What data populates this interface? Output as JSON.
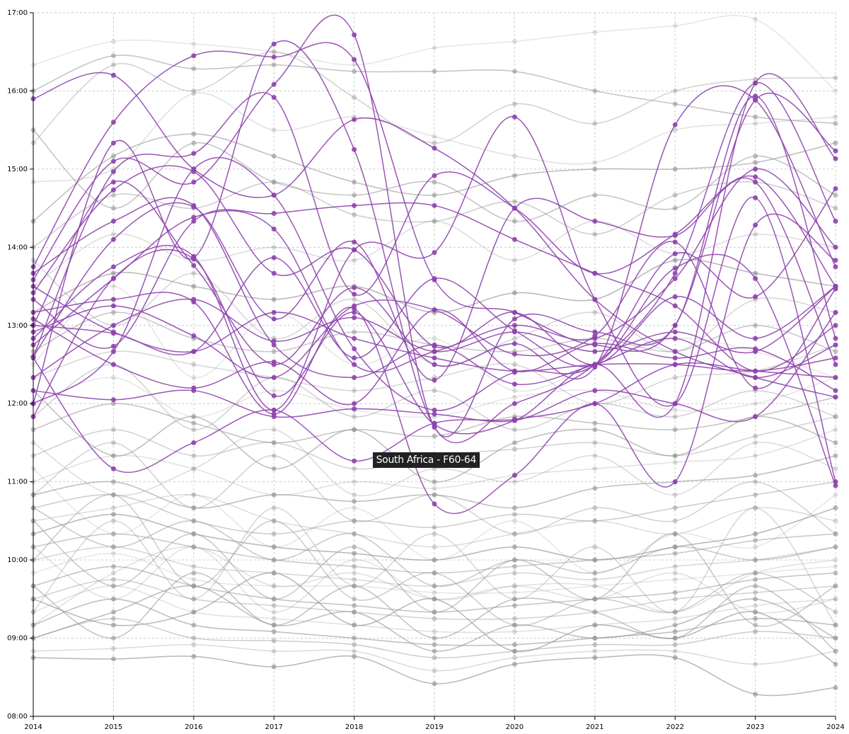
{
  "chart_data": {
    "type": "line",
    "x": [
      2014,
      2015,
      2016,
      2017,
      2018,
      2019,
      2020,
      2021,
      2022,
      2023,
      2024
    ],
    "xlim": [
      2014,
      2024
    ],
    "ylim": [
      "08:00",
      "17:00"
    ],
    "y_ticks": [
      "08:00",
      "09:00",
      "10:00",
      "11:00",
      "12:00",
      "13:00",
      "14:00",
      "15:00",
      "16:00",
      "17:00"
    ],
    "x_ticks": [
      "2014",
      "2015",
      "2016",
      "2017",
      "2018",
      "2019",
      "2020",
      "2021",
      "2022",
      "2023",
      "2024"
    ],
    "grid": true,
    "highlight_color": "#8e44ad",
    "background_color": "#cccccc",
    "tooltip": "South Africa - F60-64",
    "tooltip_point": {
      "x": 2018,
      "y": "11:16"
    },
    "highlighted_series": [
      [
        "15:54",
        "16:12",
        "15:00",
        "14:40",
        "15:38",
        "15:16",
        "14:30",
        "13:20",
        "12:40",
        "12:20",
        "12:05"
      ],
      [
        "13:45",
        "15:36",
        "16:27",
        "16:26",
        "16:24",
        "13:35",
        "13:10",
        "12:45",
        "13:00",
        "15:53",
        "15:14"
      ],
      [
        "12:00",
        "15:20",
        "13:52",
        "16:36",
        "15:15",
        "11:42",
        "12:00",
        "12:30",
        "13:40",
        "16:06",
        "14:20"
      ],
      [
        "13:35",
        "15:06",
        "14:50",
        "16:05",
        "16:43",
        "11:42",
        "13:05",
        "12:55",
        "13:00",
        "15:56",
        "12:50"
      ],
      [
        "12:36",
        "14:58",
        "15:12",
        "15:55",
        "13:24",
        "14:55",
        "14:30",
        "13:40",
        "14:10",
        "14:54",
        "13:30"
      ],
      [
        "13:20",
        "12:44",
        "14:20",
        "14:26",
        "14:32",
        "14:32",
        "14:06",
        "13:40",
        "13:15",
        "12:25",
        "13:00"
      ],
      [
        "12:50",
        "13:45",
        "13:53",
        "11:55",
        "13:58",
        "13:56",
        "15:40",
        "13:20",
        "12:00",
        "14:38",
        "11:00"
      ],
      [
        "13:00",
        "12:54",
        "12:40",
        "13:52",
        "12:35",
        "13:36",
        "12:56",
        "12:30",
        "13:44",
        "13:36",
        "10:57"
      ],
      [
        "12:36",
        "14:06",
        "14:31",
        "13:05",
        "14:04",
        "12:18",
        "14:30",
        "14:20",
        "14:09",
        "14:50",
        "12:30"
      ],
      [
        "11:50",
        "13:36",
        "13:51",
        "12:06",
        "13:10",
        "11:44",
        "11:47",
        "12:30",
        "12:00",
        "16:06",
        "15:08"
      ],
      [
        "13:10",
        "13:20",
        "13:18",
        "11:52",
        "13:13",
        "10:43",
        "11:05",
        "12:00",
        "11:00",
        "14:17",
        "13:50"
      ],
      [
        "12:35",
        "11:10",
        "11:30",
        "11:55",
        "11:16",
        "11:45",
        "11:48",
        "12:00",
        "12:30",
        "12:25",
        "12:20"
      ],
      [
        "13:40",
        "14:20",
        "14:32",
        "12:45",
        "12:20",
        "12:45",
        "12:15",
        "12:30",
        "12:50",
        "12:20",
        "12:45"
      ],
      [
        "12:10",
        "12:03",
        "12:10",
        "11:50",
        "11:56",
        "11:52",
        "11:47",
        "12:10",
        "12:00",
        "11:50",
        "13:10"
      ],
      [
        "13:30",
        "12:55",
        "12:40",
        "13:10",
        "12:50",
        "12:35",
        "12:25",
        "12:30",
        "12:30",
        "12:25",
        "12:35"
      ],
      [
        "12:20",
        "13:00",
        "13:20",
        "12:48",
        "13:06",
        "12:40",
        "12:55",
        "12:40",
        "12:55",
        "12:40",
        "13:30"
      ],
      [
        "12:45",
        "13:36",
        "14:23",
        "14:14",
        "12:30",
        "12:40",
        "13:00",
        "12:50",
        "13:36",
        "15:00",
        "14:00"
      ],
      [
        "13:05",
        "12:30",
        "12:12",
        "12:32",
        "12:00",
        "13:12",
        "12:25",
        "12:46",
        "12:35",
        "12:42",
        "12:10"
      ],
      [
        "13:25",
        "14:44",
        "14:58",
        "13:40",
        "13:58",
        "12:44",
        "13:10",
        "12:30",
        "13:22",
        "12:50",
        "13:30"
      ],
      [
        "12:00",
        "12:40",
        "15:00",
        "14:40",
        "12:42",
        "11:55",
        "12:24",
        "12:30",
        "13:55",
        "13:22",
        "14:45"
      ],
      [
        "12:55",
        "13:15",
        "12:52",
        "12:20",
        "13:15",
        "13:12",
        "12:38",
        "12:52",
        "14:04",
        "12:12",
        "13:28"
      ],
      [
        "13:00",
        "14:50",
        "13:46",
        "12:30",
        "13:29",
        "12:30",
        "12:46",
        "12:28",
        "15:34",
        "15:53",
        "13:45"
      ]
    ],
    "background_series": [
      [
        "16:20",
        "16:38",
        "16:36",
        "16:30",
        "16:20",
        "16:33",
        "16:38",
        "16:45",
        "16:50",
        "16:55",
        "16:00"
      ],
      [
        "16:00",
        "16:27",
        "16:17",
        "16:20",
        "16:15",
        "16:15",
        "16:15",
        "16:00",
        "15:50",
        "15:40",
        "15:35"
      ],
      [
        "15:20",
        "16:20",
        "16:00",
        "16:30",
        "15:55",
        "15:20",
        "15:50",
        "15:35",
        "16:00",
        "16:09",
        "16:10"
      ],
      [
        "14:50",
        "15:00",
        "15:58",
        "15:30",
        "15:40",
        "15:25",
        "15:10",
        "15:05",
        "15:30",
        "15:35",
        "15:40"
      ],
      [
        "14:20",
        "15:10",
        "15:27",
        "15:10",
        "14:50",
        "14:40",
        "14:55",
        "15:00",
        "15:00",
        "15:05",
        "15:20"
      ],
      [
        "14:00",
        "14:40",
        "14:30",
        "14:50",
        "14:25",
        "14:20",
        "14:35",
        "14:10",
        "14:40",
        "14:50",
        "14:30"
      ],
      [
        "13:30",
        "14:10",
        "13:50",
        "14:00",
        "13:50",
        "14:20",
        "13:50",
        "14:20",
        "13:55",
        "14:10",
        "14:00"
      ],
      [
        "13:10",
        "13:40",
        "13:30",
        "13:20",
        "13:30",
        "13:10",
        "13:25",
        "13:20",
        "13:50",
        "13:40",
        "13:30"
      ],
      [
        "12:40",
        "13:10",
        "12:50",
        "12:40",
        "12:55",
        "12:45",
        "12:40",
        "12:50",
        "12:40",
        "13:00",
        "12:40"
      ],
      [
        "12:20",
        "12:40",
        "12:30",
        "12:20",
        "12:10",
        "12:20",
        "12:30",
        "12:00",
        "12:20",
        "12:25",
        "12:45"
      ],
      [
        "12:00",
        "12:20",
        "11:50",
        "12:10",
        "11:55",
        "11:50",
        "12:05",
        "12:10",
        "11:55",
        "12:00",
        "12:20"
      ],
      [
        "11:40",
        "12:00",
        "11:45",
        "11:30",
        "11:40",
        "11:35",
        "11:50",
        "11:45",
        "11:40",
        "11:50",
        "12:05"
      ],
      [
        "11:20",
        "11:40",
        "11:20",
        "11:30",
        "11:10",
        "11:20",
        "11:25",
        "11:30",
        "11:20",
        "11:35",
        "11:50"
      ],
      [
        "11:00",
        "11:20",
        "11:10",
        "10:50",
        "11:00",
        "10:55",
        "11:05",
        "11:10",
        "11:15",
        "11:20",
        "11:40"
      ],
      [
        "10:50",
        "11:00",
        "10:40",
        "10:50",
        "10:45",
        "10:50",
        "10:40",
        "10:55",
        "11:00",
        "11:05",
        "11:20"
      ],
      [
        "10:40",
        "10:50",
        "10:30",
        "10:20",
        "10:30",
        "10:25",
        "10:35",
        "10:30",
        "10:40",
        "10:50",
        "11:00"
      ],
      [
        "10:30",
        "10:40",
        "10:50",
        "10:30",
        "10:20",
        "10:10",
        "10:20",
        "10:30",
        "10:20",
        "10:40",
        "10:30"
      ],
      [
        "10:20",
        "10:35",
        "10:20",
        "10:10",
        "10:05",
        "10:00",
        "10:10",
        "10:00",
        "10:10",
        "10:20",
        "10:40"
      ],
      [
        "10:10",
        "10:20",
        "10:10",
        "10:00",
        "09:55",
        "09:50",
        "09:55",
        "10:00",
        "10:05",
        "10:15",
        "10:20"
      ],
      [
        "10:00",
        "10:10",
        "09:55",
        "09:50",
        "09:45",
        "09:40",
        "09:50",
        "09:45",
        "09:55",
        "10:00",
        "10:10"
      ],
      [
        "09:50",
        "10:05",
        "09:45",
        "09:40",
        "09:40",
        "09:35",
        "09:35",
        "09:40",
        "09:45",
        "09:50",
        "09:55"
      ],
      [
        "09:40",
        "09:55",
        "09:40",
        "09:30",
        "09:25",
        "09:20",
        "09:25",
        "09:30",
        "09:35",
        "09:45",
        "09:50"
      ],
      [
        "09:30",
        "09:45",
        "09:30",
        "09:25",
        "09:20",
        "09:15",
        "09:15",
        "09:20",
        "09:30",
        "09:35",
        "09:40"
      ],
      [
        "09:20",
        "09:40",
        "09:20",
        "09:15",
        "09:10",
        "09:05",
        "09:05",
        "09:10",
        "09:15",
        "09:25",
        "09:30"
      ],
      [
        "09:10",
        "09:30",
        "09:10",
        "09:05",
        "09:00",
        "08:55",
        "08:55",
        "09:00",
        "09:05",
        "09:15",
        "09:10"
      ],
      [
        "09:00",
        "09:15",
        "09:00",
        "08:58",
        "08:55",
        "08:45",
        "08:50",
        "08:55",
        "08:55",
        "09:05",
        "09:00"
      ],
      [
        "08:50",
        "08:52",
        "08:55",
        "08:50",
        "08:50",
        "08:35",
        "08:45",
        "08:50",
        "08:50",
        "08:40",
        "08:50"
      ],
      [
        "08:45",
        "08:44",
        "08:46",
        "08:38",
        "08:46",
        "08:25",
        "08:40",
        "08:45",
        "08:45",
        "08:17",
        "08:22"
      ],
      [
        "10:30",
        "09:40",
        "10:20",
        "09:30",
        "10:10",
        "09:20",
        "10:00",
        "09:30",
        "10:20",
        "09:10",
        "09:40"
      ],
      [
        "09:20",
        "10:30",
        "09:30",
        "10:40",
        "09:40",
        "10:20",
        "09:30",
        "10:10",
        "09:20",
        "10:40",
        "09:10"
      ],
      [
        "11:10",
        "10:20",
        "10:50",
        "10:10",
        "10:40",
        "10:00",
        "10:30",
        "09:50",
        "10:20",
        "10:10",
        "10:50"
      ],
      [
        "09:40",
        "09:00",
        "09:50",
        "09:10",
        "09:40",
        "09:00",
        "09:30",
        "09:20",
        "09:00",
        "09:40",
        "08:50"
      ],
      [
        "10:50",
        "11:30",
        "10:40",
        "11:20",
        "10:30",
        "10:50",
        "10:20",
        "10:40",
        "10:30",
        "11:00",
        "10:20"
      ],
      [
        "09:10",
        "09:50",
        "10:10",
        "09:40",
        "09:50",
        "09:30",
        "09:40",
        "09:30",
        "09:50",
        "09:20",
        "09:30"
      ],
      [
        "12:10",
        "11:20",
        "11:50",
        "11:10",
        "11:40",
        "11:00",
        "11:30",
        "11:40",
        "11:20",
        "11:50",
        "11:30"
      ],
      [
        "10:00",
        "10:50",
        "09:40",
        "10:30",
        "09:30",
        "09:50",
        "09:10",
        "09:30",
        "09:20",
        "09:50",
        "09:20"
      ],
      [
        "11:30",
        "10:50",
        "11:10",
        "11:40",
        "10:50",
        "11:10",
        "11:00",
        "11:20",
        "10:50",
        "11:30",
        "11:10"
      ],
      [
        "09:30",
        "09:10",
        "09:20",
        "09:50",
        "09:10",
        "09:30",
        "08:50",
        "09:10",
        "09:00",
        "09:20",
        "08:40"
      ],
      [
        "10:40",
        "10:10",
        "10:30",
        "10:00",
        "10:20",
        "09:40",
        "10:00",
        "09:50",
        "10:10",
        "10:00",
        "10:10"
      ],
      [
        "13:50",
        "13:00",
        "13:40",
        "12:50",
        "13:20",
        "12:30",
        "12:50",
        "13:10",
        "12:40",
        "13:20",
        "13:10"
      ],
      [
        "12:30",
        "13:30",
        "12:20",
        "13:10",
        "12:30",
        "12:50",
        "12:10",
        "12:30",
        "12:50",
        "12:40",
        "12:20"
      ],
      [
        "15:30",
        "14:30",
        "15:20",
        "14:50",
        "14:40",
        "14:50",
        "14:20",
        "14:40",
        "14:30",
        "15:10",
        "14:40"
      ],
      [
        "11:50",
        "12:30",
        "11:40",
        "12:20",
        "11:50",
        "12:10",
        "11:40",
        "12:00",
        "11:50",
        "12:10",
        "11:50"
      ],
      [
        "10:10",
        "09:30",
        "10:10",
        "09:20",
        "10:00",
        "09:30",
        "09:40",
        "09:40",
        "09:20",
        "09:50",
        "10:00"
      ],
      [
        "09:00",
        "09:20",
        "09:40",
        "09:10",
        "09:20",
        "08:50",
        "09:10",
        "09:00",
        "09:10",
        "09:30",
        "09:00"
      ]
    ]
  }
}
